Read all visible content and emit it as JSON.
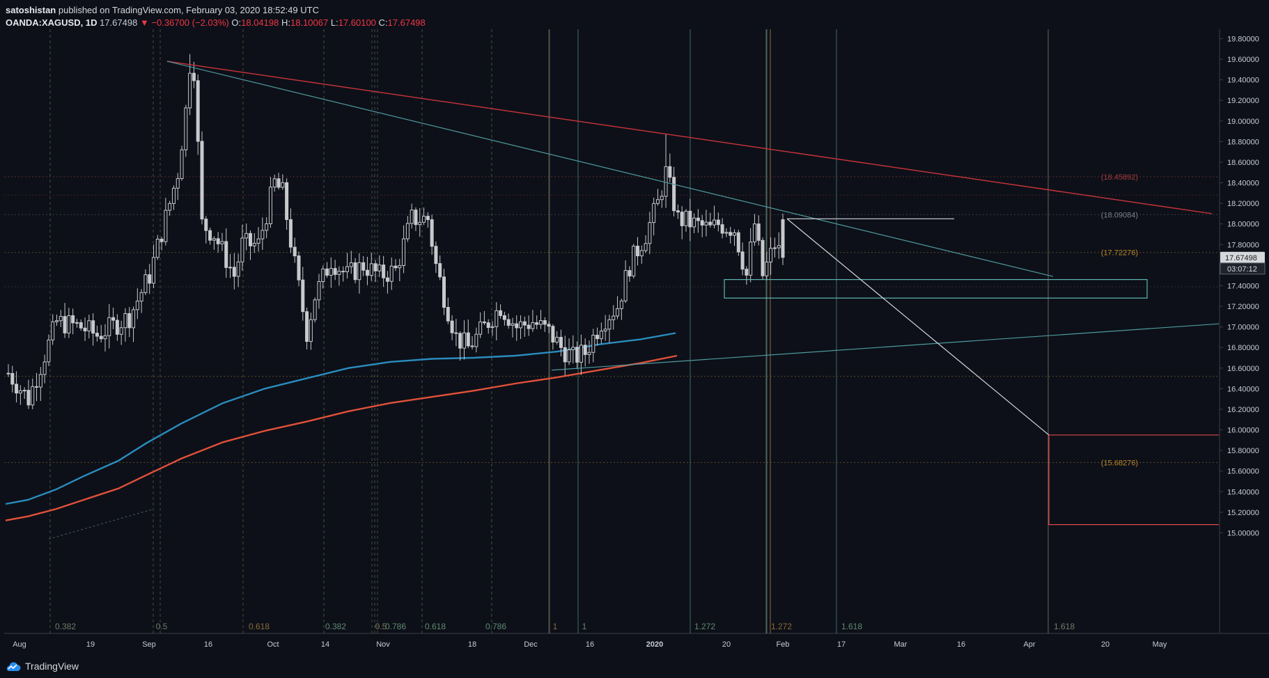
{
  "header": {
    "author": "satoshistan",
    "published_text": " published on TradingView.com, February 03, 2020 18:52:49 UTC",
    "symbol": "OANDA:XAGUSD, 1D",
    "last": "17.67498",
    "change": "−0.36700 (−2.03%)",
    "o_label": "O:",
    "o_val": "18.04198",
    "h_label": "H:",
    "h_val": "18.10067",
    "l_label": "L:",
    "l_val": "17.60100",
    "c_label": "C:",
    "c_val": "17.67498"
  },
  "footer": {
    "brand": "TradingView"
  },
  "colors": {
    "background": "#0d1018",
    "candle": "#c8c9cd",
    "ma_blue": "#2a8cbf",
    "ma_red": "#e2513a",
    "trend_red": "#c0323a",
    "trend_teal": "#4f9aa0",
    "box_teal": "#5fb6b3",
    "target_red": "#e04848",
    "axis_text": "#c8ccd6"
  },
  "chart_data": {
    "type": "candlestick",
    "symbol": "OANDA:XAGUSD",
    "interval": "1D",
    "x_ticks": [
      "Aug",
      "19",
      "Sep",
      "16",
      "Oct",
      "14",
      "Nov",
      "18",
      "Dec",
      "16",
      "2020",
      "20",
      "Feb",
      "17",
      "Mar",
      "16",
      "Apr",
      "20",
      "May"
    ],
    "y_ticks": [
      "15.00000",
      "15.20000",
      "15.40000",
      "15.60000",
      "15.80000",
      "16.00000",
      "16.20000",
      "16.40000",
      "16.60000",
      "16.80000",
      "17.00000",
      "17.20000",
      "17.40000",
      "17.60000",
      "17.80000",
      "18.00000",
      "18.20000",
      "18.40000",
      "18.60000",
      "18.80000",
      "19.00000",
      "19.20000",
      "19.40000",
      "19.60000",
      "19.80000"
    ],
    "ylim": [
      14.94,
      19.87
    ],
    "current_price_label": "17.67498",
    "countdown_label": "03:07:12",
    "price_level_labels": [
      {
        "value": 18.45892,
        "text": "(18.45892)",
        "color": "#a33a3a"
      },
      {
        "value": 18.09084,
        "text": "(18.09084)",
        "color": "#7a7f8a"
      },
      {
        "value": 17.72276,
        "text": "(17.72276)",
        "color": "#b9862a"
      },
      {
        "value": 15.68276,
        "text": "(15.68276)",
        "color": "#b9862a"
      }
    ],
    "fib_time_labels": [
      "0.382",
      "0.5",
      "0.618",
      "0.382",
      "0.5",
      "0.786",
      "0.618",
      "0.786",
      "1",
      "1",
      "1.272",
      "1.272",
      "1.618",
      "1.618"
    ],
    "last_candle": {
      "open": 18.04198,
      "high": 18.10067,
      "low": 17.601,
      "close": 17.67498
    },
    "key_prices": {
      "sep_high": 19.65,
      "swing_high_jan": 18.87,
      "dec_low": 16.53
    }
  }
}
